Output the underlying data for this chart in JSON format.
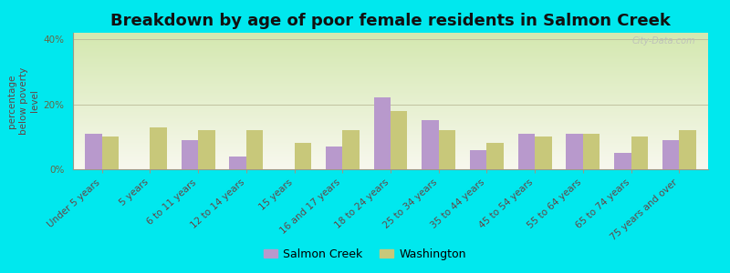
{
  "title": "Breakdown by age of poor female residents in Salmon Creek",
  "ylabel": "percentage\nbelow poverty\nlevel",
  "categories": [
    "Under 5 years",
    "5 years",
    "6 to 11 years",
    "12 to 14 years",
    "15 years",
    "16 and 17 years",
    "18 to 24 years",
    "25 to 34 years",
    "35 to 44 years",
    "45 to 54 years",
    "55 to 64 years",
    "65 to 74 years",
    "75 years and over"
  ],
  "salmon_creek": [
    11,
    0,
    9,
    4,
    0,
    7,
    22,
    15,
    6,
    11,
    11,
    5,
    9
  ],
  "washington": [
    10,
    13,
    12,
    12,
    8,
    12,
    18,
    12,
    8,
    10,
    11,
    10,
    12
  ],
  "salmon_creek_color": "#b899cc",
  "washington_color": "#c8c87a",
  "outer_bg": "#00e8ee",
  "ylim": [
    0,
    42
  ],
  "yticks": [
    0,
    20,
    40
  ],
  "ytick_labels": [
    "0%",
    "20%",
    "40%"
  ],
  "bar_width": 0.35,
  "title_fontsize": 13,
  "tick_fontsize": 7.5,
  "ylabel_fontsize": 7.5,
  "legend_fontsize": 9,
  "watermark": "City-Data.com"
}
